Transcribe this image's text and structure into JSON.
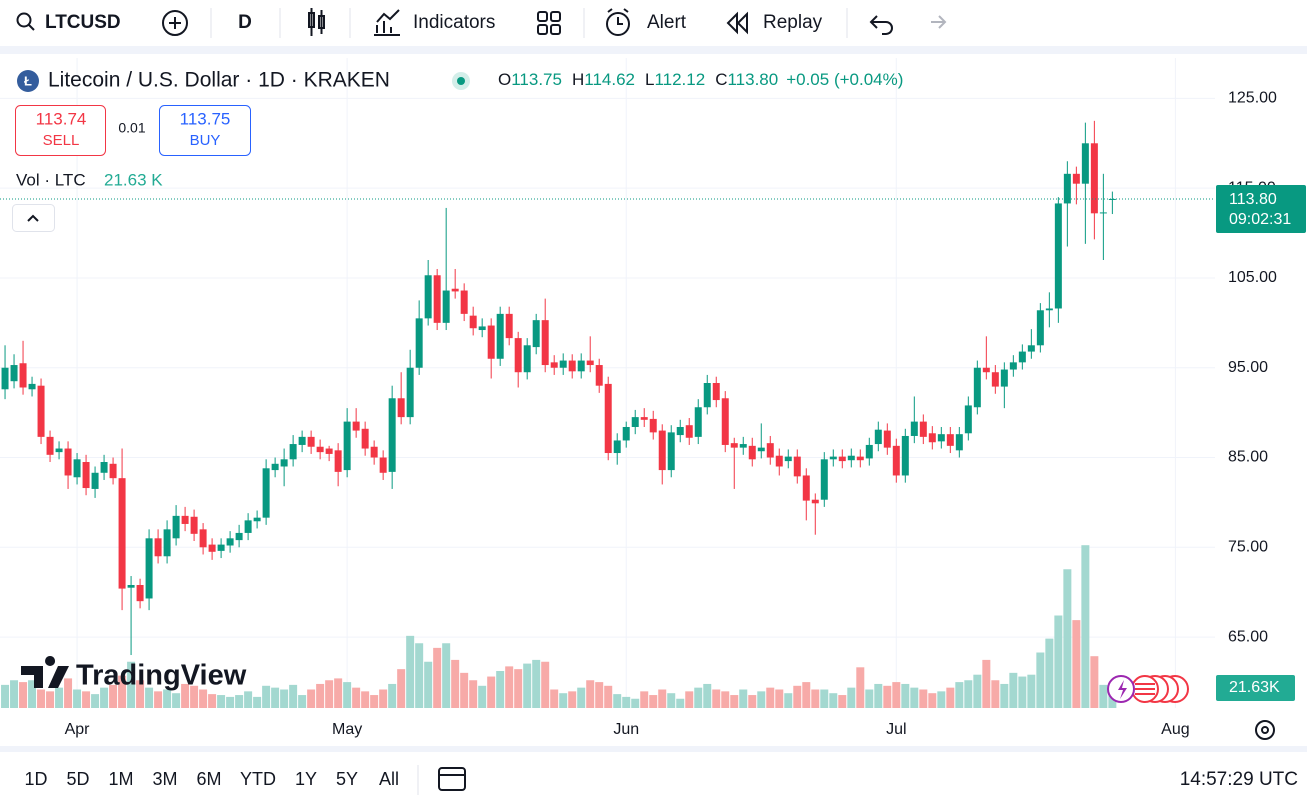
{
  "toolbar": {
    "symbol": "LTCUSD",
    "interval": "D",
    "indicators": "Indicators",
    "alert": "Alert",
    "replay": "Replay"
  },
  "legend": {
    "title": "Litecoin / U.S. Dollar · 1D · KRAKEN",
    "ohlc_names": [
      "O",
      "H",
      "L",
      "C"
    ],
    "ohlc_values": [
      "113.75",
      "114.62",
      "112.12",
      "113.80"
    ],
    "change": "+0.05 (+0.04%)"
  },
  "trade": {
    "sell_price": "113.74",
    "sell": "SELL",
    "spread": "0.01",
    "buy_price": "113.75",
    "buy": "BUY"
  },
  "volume_legend": {
    "name": "Vol · LTC",
    "value": "21.63 K"
  },
  "logo": "TradingView",
  "ranges": [
    "1D",
    "5D",
    "1M",
    "3M",
    "6M",
    "YTD",
    "1Y",
    "5Y",
    "All"
  ],
  "clock": "14:57:29 UTC",
  "chart_data": {
    "type": "candlestick",
    "up_color": "#089981",
    "down_color": "#f23645",
    "volume_up_color": "#a3d8d0",
    "volume_down_color": "#f7aaa8",
    "xlim": [
      -0.56,
      134.4
    ],
    "xticks": [
      {
        "value": 8,
        "label": "Apr"
      },
      {
        "value": 38,
        "label": "May"
      },
      {
        "value": 69,
        "label": "Jun"
      },
      {
        "value": 99,
        "label": "Jul"
      },
      {
        "value": 130,
        "label": "Aug"
      }
    ],
    "ylim": [
      57.1,
      129.5
    ],
    "yticks": [
      {
        "value": 65,
        "label": "65.00"
      },
      {
        "value": 75,
        "label": "75.00"
      },
      {
        "value": 85,
        "label": "85.00"
      },
      {
        "value": 95,
        "label": "95.00"
      },
      {
        "value": 105,
        "label": "105.00"
      },
      {
        "value": 115,
        "label": "115.00"
      },
      {
        "value": 125,
        "label": "125.00"
      }
    ],
    "grid": true,
    "open": [
      92.6,
      93.5,
      95.5,
      92.6,
      93,
      87.3,
      85.6,
      86,
      82.8,
      84.5,
      81.5,
      83.3,
      84.3,
      82.7,
      70.5,
      70.8,
      69.3,
      76,
      74,
      76,
      78.5,
      78.4,
      77,
      75.3,
      74.6,
      75.2,
      75.8,
      76.6,
      77.9,
      78.3,
      83.6,
      84,
      84.8,
      86.4,
      87.3,
      86.2,
      86,
      85.8,
      83.6,
      89,
      88.2,
      86.2,
      85,
      83.4,
      91.6,
      89.5,
      95,
      100.5,
      105.3,
      100,
      103.8,
      103.6,
      100.8,
      99.2,
      99.7,
      96,
      101,
      98.3,
      94.5,
      97.3,
      100.3,
      95.6,
      95,
      95.8,
      94.6,
      95.8,
      95.3,
      93.2,
      85.5,
      86.9,
      88.4,
      89.5,
      89.3,
      88,
      83.6,
      87.5,
      88.6,
      87.3,
      90.6,
      93.3,
      91.6,
      86.6,
      86.1,
      86.3,
      85.7,
      86.6,
      85.2,
      84.6,
      85.1,
      83,
      80.3,
      80.3,
      84.8,
      85.1,
      84.7,
      85.1,
      84.9,
      86.5,
      88,
      86.3,
      83,
      87.4,
      89,
      87.7,
      86.8,
      87.6,
      85.8,
      87.7,
      90.6,
      95,
      94.5,
      92.9,
      94.8,
      95.6,
      96.8,
      97.5,
      101.4,
      101.6,
      113.3,
      116.6,
      115.5,
      120,
      112.2,
      113.75
    ],
    "high": [
      97.5,
      96.5,
      98,
      94,
      93.8,
      88,
      86.8,
      86.8,
      85.5,
      85.3,
      84,
      85.3,
      85,
      86,
      71.8,
      71.5,
      77,
      77,
      78,
      79.7,
      79.5,
      79.2,
      77.7,
      76,
      76,
      76.8,
      77.5,
      78.8,
      79.1,
      84.8,
      85,
      86,
      87.5,
      88,
      88,
      87,
      86.3,
      86.6,
      90.5,
      90.5,
      89,
      86.9,
      85.8,
      93,
      94.5,
      97,
      102.5,
      107,
      106,
      112.8,
      106,
      104.4,
      101.8,
      100.5,
      100.5,
      101.8,
      101.8,
      99,
      98.3,
      101,
      102.7,
      96.4,
      96.6,
      96.5,
      96.6,
      98.5,
      96,
      94,
      87.7,
      89,
      90.3,
      90.5,
      90.2,
      88.7,
      88.6,
      89.2,
      89.4,
      91.5,
      94.2,
      94,
      92.4,
      87.2,
      87.3,
      87.2,
      88.8,
      87.4,
      86,
      85.9,
      85.9,
      83.8,
      81,
      85.6,
      85.9,
      85.9,
      86,
      85.9,
      87.2,
      89,
      88.8,
      87.1,
      88.2,
      91.8,
      89.8,
      88.5,
      88.4,
      88.4,
      88.4,
      91.8,
      95.8,
      98.5,
      95.3,
      95.6,
      96.4,
      97.6,
      99.3,
      102.2,
      103.4,
      114,
      118,
      117.4,
      122.3,
      122.5,
      116.6,
      114.62
    ],
    "low": [
      91.5,
      92.7,
      92,
      91.8,
      86.5,
      84.5,
      84.8,
      81.5,
      82,
      80.8,
      80.5,
      82.5,
      82,
      68,
      63,
      68.2,
      68,
      73.2,
      73.2,
      75.2,
      76.8,
      75.7,
      74.2,
      73.6,
      73.8,
      74.4,
      75,
      75.8,
      77.1,
      77.5,
      82.8,
      81.8,
      84,
      85.6,
      85.4,
      84.8,
      84.6,
      81.8,
      82.8,
      87.2,
      85.2,
      84.2,
      82.5,
      81.5,
      88.7,
      88.7,
      94.2,
      99.7,
      99.2,
      99.2,
      102.7,
      100.2,
      98.6,
      98.4,
      93.8,
      95.2,
      97.5,
      92.8,
      93.7,
      96.5,
      94.5,
      94.2,
      94.2,
      93.8,
      93.8,
      94.5,
      92.2,
      84.7,
      84.2,
      86.1,
      87.6,
      88.4,
      87,
      82,
      82.8,
      86.7,
      86.4,
      86.5,
      89.8,
      90.6,
      85.6,
      81.5,
      85.3,
      84,
      84.9,
      84.2,
      83,
      83.8,
      82.1,
      78,
      76.4,
      79.5,
      84,
      83.8,
      83.9,
      83.9,
      84.1,
      85.7,
      85.3,
      82.2,
      82.2,
      86.6,
      86.5,
      85.9,
      86,
      85.5,
      85,
      86.9,
      89.8,
      93.7,
      92.1,
      90.5,
      94,
      94.8,
      96,
      96.7,
      99.5,
      100,
      108.5,
      113.2,
      108.8,
      109.3,
      107,
      112.12
    ],
    "close": [
      95,
      95.3,
      92.8,
      93.2,
      87.3,
      85.3,
      86,
      83,
      84.8,
      81.6,
      83.3,
      84.5,
      82.7,
      70.4,
      70.8,
      69,
      76,
      74,
      77,
      78.5,
      77.6,
      76.5,
      75,
      74.5,
      75.3,
      76,
      76.6,
      78,
      78.3,
      83.8,
      84.3,
      84.8,
      86.5,
      87.3,
      86.2,
      85.6,
      85.4,
      83.4,
      89,
      88,
      86,
      85,
      83.3,
      91.6,
      89.5,
      95,
      100.5,
      105.3,
      100,
      103.6,
      103.5,
      101,
      99.4,
      99.6,
      96,
      101,
      98.3,
      94.5,
      97.5,
      100.3,
      95.3,
      95,
      95.8,
      94.6,
      95.8,
      95.3,
      93,
      85.5,
      86.9,
      88.4,
      89.5,
      89.2,
      87.8,
      83.6,
      87.8,
      88.4,
      87.2,
      90.6,
      93.3,
      91.4,
      86.4,
      86.1,
      86.5,
      84.8,
      86.1,
      85,
      84,
      85.1,
      82.9,
      80.2,
      79.9,
      84.8,
      85.1,
      84.6,
      85.2,
      84.7,
      86.4,
      88.1,
      86.1,
      83,
      87.4,
      89,
      87.3,
      86.7,
      87.6,
      86.3,
      87.6,
      90.8,
      95,
      94.5,
      92.9,
      94.8,
      95.6,
      96.8,
      97.5,
      101.4,
      101.6,
      113.3,
      116.6,
      115.5,
      120,
      112.2,
      112.3,
      113.8
    ],
    "volume": [
      25,
      30,
      28,
      30,
      20,
      18,
      22,
      32,
      20,
      18,
      15,
      22,
      25,
      35,
      50,
      30,
      22,
      18,
      20,
      16,
      26,
      24,
      20,
      15,
      14,
      12,
      14,
      18,
      12,
      24,
      22,
      20,
      25,
      14,
      20,
      26,
      30,
      32,
      28,
      22,
      18,
      14,
      20,
      26,
      42,
      78,
      70,
      50,
      65,
      70,
      52,
      38,
      30,
      24,
      34,
      40,
      45,
      42,
      48,
      52,
      50,
      20,
      16,
      18,
      22,
      30,
      28,
      24,
      15,
      12,
      10,
      18,
      14,
      20,
      16,
      10,
      18,
      22,
      26,
      20,
      18,
      14,
      20,
      14,
      18,
      22,
      20,
      16,
      24,
      28,
      20,
      20,
      16,
      14,
      22,
      44,
      20,
      26,
      24,
      28,
      26,
      22,
      20,
      16,
      18,
      22,
      28,
      30,
      36,
      52,
      30,
      26,
      38,
      34,
      36,
      60,
      75,
      100,
      150,
      95,
      176,
      56,
      25,
      21.63
    ],
    "volume_ylim": [
      0,
      200
    ],
    "volume_axis_label": "21.63K",
    "last_price_label": "113.80",
    "countdown": "09:02:31"
  }
}
